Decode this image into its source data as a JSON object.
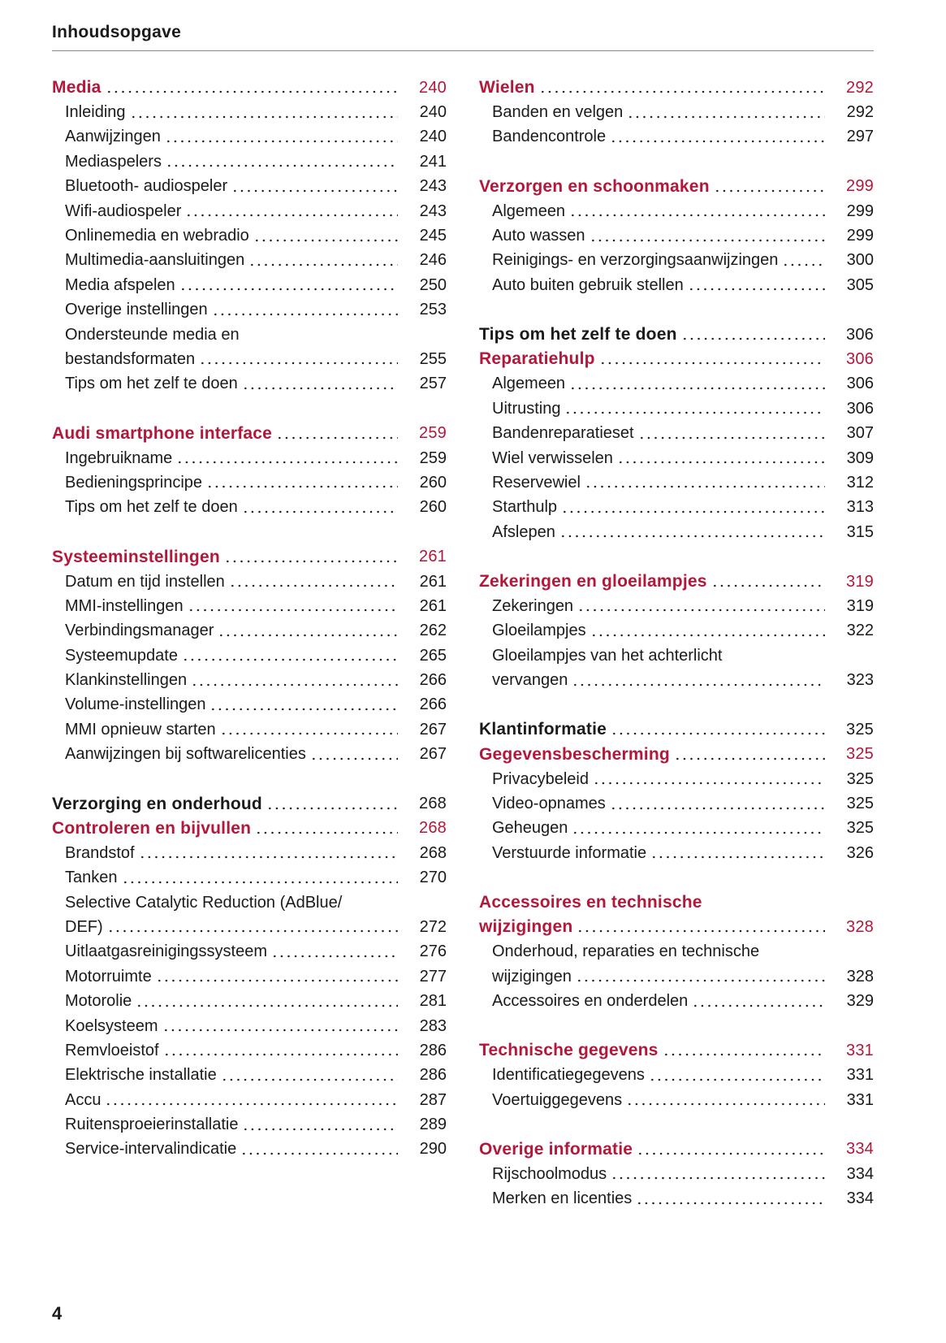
{
  "header": {
    "title": "Inhoudsopgave"
  },
  "footer": {
    "page_number": "4"
  },
  "colors": {
    "accent": "#b3173a",
    "text": "#1a1a1a",
    "rule": "#8a8a8a"
  },
  "columns": [
    [
      {
        "k": "h",
        "t": "Media",
        "p": "240"
      },
      {
        "k": "s",
        "t": "Inleiding",
        "p": "240"
      },
      {
        "k": "s",
        "t": "Aanwijzingen",
        "p": "240"
      },
      {
        "k": "s",
        "t": "Mediaspelers",
        "p": "241"
      },
      {
        "k": "s",
        "t": "Bluetooth- audiospeler",
        "p": "243"
      },
      {
        "k": "s",
        "t": "Wifi-audiospeler",
        "p": "243"
      },
      {
        "k": "s",
        "t": "Onlinemedia en webradio",
        "p": "245"
      },
      {
        "k": "s",
        "t": "Multimedia-aansluitingen",
        "p": "246"
      },
      {
        "k": "s",
        "t": "Media afspelen",
        "p": "250"
      },
      {
        "k": "s",
        "t": "Overige instellingen",
        "p": "253"
      },
      {
        "k": "s",
        "t": "Ondersteunde media en",
        "cont": true
      },
      {
        "k": "s",
        "t": "bestandsformaten",
        "p": "255"
      },
      {
        "k": "s",
        "t": "Tips om het zelf te doen",
        "p": "257"
      },
      {
        "k": "gap"
      },
      {
        "k": "h",
        "t": "Audi smartphone interface",
        "p": "259"
      },
      {
        "k": "s",
        "t": "Ingebruikname",
        "p": "259"
      },
      {
        "k": "s",
        "t": "Bedieningsprincipe",
        "p": "260"
      },
      {
        "k": "s",
        "t": "Tips om het zelf te doen",
        "p": "260"
      },
      {
        "k": "gap"
      },
      {
        "k": "h",
        "t": "Systeeminstellingen",
        "p": "261"
      },
      {
        "k": "s",
        "t": "Datum en tijd instellen",
        "p": "261"
      },
      {
        "k": "s",
        "t": "MMI-instellingen",
        "p": "261"
      },
      {
        "k": "s",
        "t": "Verbindingsmanager",
        "p": "262"
      },
      {
        "k": "s",
        "t": "Systeemupdate",
        "p": "265"
      },
      {
        "k": "s",
        "t": "Klankinstellingen",
        "p": "266"
      },
      {
        "k": "s",
        "t": "Volume-instellingen",
        "p": "266"
      },
      {
        "k": "s",
        "t": "MMI opnieuw starten",
        "p": "267"
      },
      {
        "k": "s",
        "t": "Aanwijzingen bij softwarelicenties",
        "p": "267"
      },
      {
        "k": "gap"
      },
      {
        "k": "b",
        "t": "Verzorging en onderhoud",
        "p": "268"
      },
      {
        "k": "h",
        "t": "Controleren en bijvullen",
        "p": "268"
      },
      {
        "k": "s",
        "t": "Brandstof",
        "p": "268"
      },
      {
        "k": "s",
        "t": "Tanken",
        "p": "270"
      },
      {
        "k": "s",
        "t": "Selective Catalytic Reduction (AdBlue/",
        "cont": true
      },
      {
        "k": "s",
        "t": "DEF)",
        "p": "272"
      },
      {
        "k": "s",
        "t": "Uitlaatgasreinigingssysteem",
        "p": "276"
      },
      {
        "k": "s",
        "t": "Motorruimte",
        "p": "277"
      },
      {
        "k": "s",
        "t": "Motorolie",
        "p": "281"
      },
      {
        "k": "s",
        "t": "Koelsysteem",
        "p": "283"
      },
      {
        "k": "s",
        "t": "Remvloeistof",
        "p": "286"
      },
      {
        "k": "s",
        "t": "Elektrische installatie",
        "p": "286"
      },
      {
        "k": "s",
        "t": "Accu",
        "p": "287"
      },
      {
        "k": "s",
        "t": "Ruitensproeierinstallatie",
        "p": "289"
      },
      {
        "k": "s",
        "t": "Service-intervalindicatie",
        "p": "290"
      }
    ],
    [
      {
        "k": "h",
        "t": "Wielen",
        "p": "292"
      },
      {
        "k": "s",
        "t": "Banden en velgen",
        "p": "292"
      },
      {
        "k": "s",
        "t": "Bandencontrole",
        "p": "297"
      },
      {
        "k": "gap"
      },
      {
        "k": "h",
        "t": "Verzorgen en schoonmaken",
        "p": "299"
      },
      {
        "k": "s",
        "t": "Algemeen",
        "p": "299"
      },
      {
        "k": "s",
        "t": "Auto wassen",
        "p": "299"
      },
      {
        "k": "s",
        "t": "Reinigings- en verzorgingsaanwijzingen",
        "p": "300"
      },
      {
        "k": "s",
        "t": "Auto buiten gebruik stellen",
        "p": "305"
      },
      {
        "k": "gap"
      },
      {
        "k": "b",
        "t": "Tips om het zelf te doen",
        "p": "306"
      },
      {
        "k": "h",
        "t": "Reparatiehulp",
        "p": "306"
      },
      {
        "k": "s",
        "t": "Algemeen",
        "p": "306"
      },
      {
        "k": "s",
        "t": "Uitrusting",
        "p": "306"
      },
      {
        "k": "s",
        "t": "Bandenreparatieset",
        "p": "307"
      },
      {
        "k": "s",
        "t": "Wiel verwisselen",
        "p": "309"
      },
      {
        "k": "s",
        "t": "Reservewiel",
        "p": "312"
      },
      {
        "k": "s",
        "t": "Starthulp",
        "p": "313"
      },
      {
        "k": "s",
        "t": "Afslepen",
        "p": "315"
      },
      {
        "k": "gap"
      },
      {
        "k": "h",
        "t": "Zekeringen en gloeilampjes",
        "p": "319"
      },
      {
        "k": "s",
        "t": "Zekeringen",
        "p": "319"
      },
      {
        "k": "s",
        "t": "Gloeilampjes",
        "p": "322"
      },
      {
        "k": "s",
        "t": "Gloeilampjes van het achterlicht",
        "cont": true
      },
      {
        "k": "s",
        "t": "vervangen",
        "p": "323"
      },
      {
        "k": "gap"
      },
      {
        "k": "b",
        "t": "Klantinformatie",
        "p": "325"
      },
      {
        "k": "h",
        "t": "Gegevensbescherming",
        "p": "325"
      },
      {
        "k": "s",
        "t": "Privacybeleid",
        "p": "325"
      },
      {
        "k": "s",
        "t": "Video-opnames",
        "p": "325"
      },
      {
        "k": "s",
        "t": "Geheugen",
        "p": "325"
      },
      {
        "k": "s",
        "t": "Verstuurde informatie",
        "p": "326"
      },
      {
        "k": "gap"
      },
      {
        "k": "h",
        "t": "Accessoires en technische",
        "cont": true
      },
      {
        "k": "h",
        "t": "wijzigingen",
        "p": "328",
        "nodent": true
      },
      {
        "k": "s",
        "t": "Onderhoud, reparaties en technische",
        "cont": true
      },
      {
        "k": "s",
        "t": "wijzigingen",
        "p": "328"
      },
      {
        "k": "s",
        "t": "Accessoires en onderdelen",
        "p": "329"
      },
      {
        "k": "gap"
      },
      {
        "k": "h",
        "t": "Technische gegevens",
        "p": "331"
      },
      {
        "k": "s",
        "t": "Identificatiegegevens",
        "p": "331"
      },
      {
        "k": "s",
        "t": "Voertuiggegevens",
        "p": "331"
      },
      {
        "k": "gap"
      },
      {
        "k": "h",
        "t": "Overige informatie",
        "p": "334"
      },
      {
        "k": "s",
        "t": "Rijschoolmodus",
        "p": "334"
      },
      {
        "k": "s",
        "t": "Merken en licenties",
        "p": "334"
      }
    ]
  ]
}
